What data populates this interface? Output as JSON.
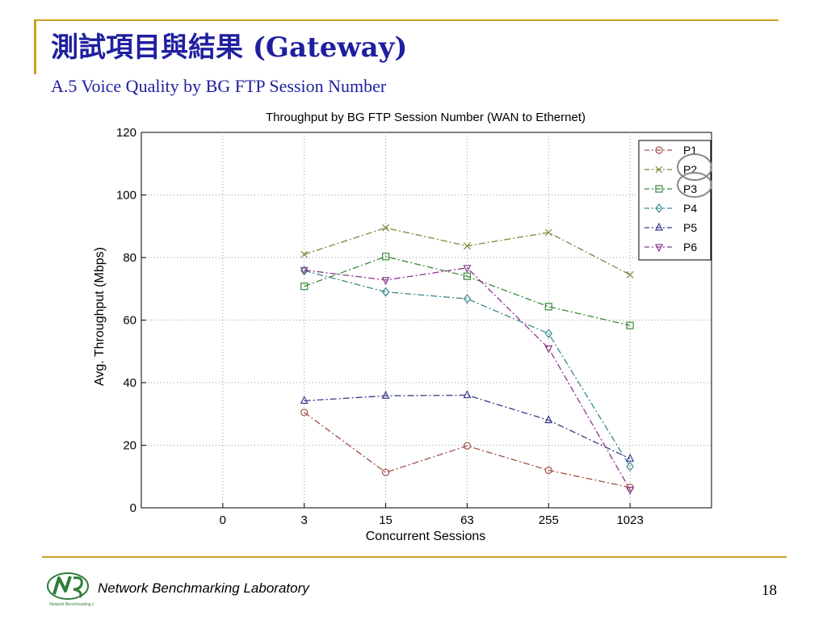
{
  "slide": {
    "title": "測試項目與結果 (Gateway)",
    "subtitle": "A.5 Voice Quality by BG FTP Session Number",
    "footer": "Network Benchmarking Laboratory",
    "page_number": "18",
    "accent_color": "#c8a21f",
    "title_color": "#1f1f9f"
  },
  "chart_data": {
    "type": "line",
    "title": "Throughput by BG FTP Session Number (WAN to Ethernet)",
    "xlabel": "Concurrent Sessions",
    "ylabel": "Avg. Throughput (Mbps)",
    "categories": [
      "0",
      "3",
      "15",
      "63",
      "255",
      "1023"
    ],
    "xlim": [
      -1,
      6
    ],
    "ylim": [
      0,
      120
    ],
    "yticks": [
      0,
      20,
      40,
      60,
      80,
      100,
      120
    ],
    "grid": true,
    "legend_position": "top-right",
    "series": [
      {
        "name": "P1",
        "color": "#a0524a",
        "marker": "circle",
        "values": [
          null,
          30.5,
          11.3,
          19.8,
          12.0,
          6.5
        ]
      },
      {
        "name": "P2",
        "color": "#7a8a3a",
        "marker": "x",
        "values": [
          null,
          81.0,
          89.5,
          83.7,
          88.0,
          74.5
        ]
      },
      {
        "name": "P3",
        "color": "#3a8a3a",
        "marker": "square",
        "values": [
          null,
          70.8,
          80.3,
          74.0,
          64.3,
          58.3
        ]
      },
      {
        "name": "P4",
        "color": "#3a8a8a",
        "marker": "diamond",
        "values": [
          null,
          75.8,
          69.0,
          66.8,
          55.7,
          13.2
        ]
      },
      {
        "name": "P5",
        "color": "#3a3a8a",
        "marker": "triangle-up",
        "values": [
          null,
          34.2,
          35.8,
          36.0,
          28.0,
          15.7
        ]
      },
      {
        "name": "P6",
        "color": "#8a3a8a",
        "marker": "triangle-down",
        "values": [
          null,
          76.0,
          72.8,
          76.7,
          51.0,
          5.8
        ]
      }
    ]
  }
}
